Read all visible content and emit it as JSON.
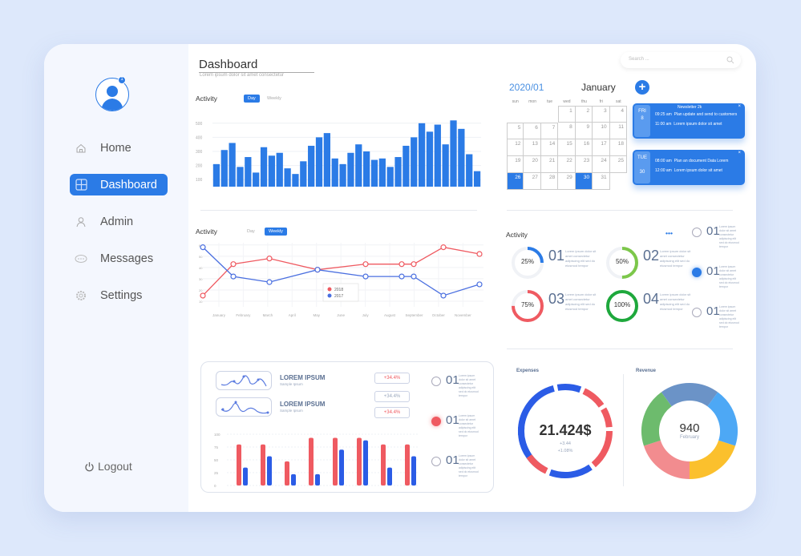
{
  "sidebar": {
    "avatar_badge": "1",
    "items": [
      {
        "label": "Home",
        "icon": "home-icon",
        "active": false
      },
      {
        "label": "Dashboard",
        "icon": "grid-icon",
        "active": true
      },
      {
        "label": "Admin",
        "icon": "user-icon",
        "active": false
      },
      {
        "label": "Messages",
        "icon": "chat-icon",
        "active": false
      },
      {
        "label": "Settings",
        "icon": "gear-icon",
        "active": false
      }
    ],
    "logout_label": "Logout"
  },
  "header": {
    "title": "Dashboard",
    "subtitle": "Lorem ipsum dolor sit amet consectetur",
    "search_placeholder": "Search ..."
  },
  "activity_bar": {
    "label": "Activity",
    "tabs": [
      "Day",
      "Weekly"
    ],
    "active_tab": "Day"
  },
  "activity_line": {
    "label": "Activity",
    "tabs": [
      "Day",
      "Weekly"
    ],
    "active_tab": "Weekly",
    "legend": [
      "2018",
      "2017"
    ]
  },
  "calendar": {
    "year_month": "2020/01",
    "month": "January",
    "weekdays": [
      "sun",
      "mon",
      "tue",
      "wed",
      "thu",
      "fri",
      "sat"
    ],
    "days": [
      "",
      "",
      "",
      "1",
      "2",
      "3",
      "4",
      "5",
      "6",
      "7",
      "8",
      "9",
      "10",
      "11",
      "12",
      "13",
      "14",
      "15",
      "16",
      "17",
      "18",
      "19",
      "20",
      "21",
      "22",
      "23",
      "24",
      "25",
      "26",
      "27",
      "28",
      "29",
      "30",
      "31",
      ""
    ],
    "selected": [
      "26",
      "30"
    ],
    "add_label": "+"
  },
  "events": [
    {
      "date_top": "FRI",
      "date_bottom": "8",
      "title": "Newsletter 2k",
      "rows": [
        {
          "time": "09:25 am",
          "text": "Plan update and send to customers"
        },
        {
          "time": "11:00 am",
          "text": "Lorem ipsum dolor sit amet"
        }
      ]
    },
    {
      "date_top": "TUE",
      "date_bottom": "30",
      "title": "",
      "rows": [
        {
          "time": "08:00 am",
          "text": "Plan an document Data Lorem"
        },
        {
          "time": "12:00 am",
          "text": "Lorem ipsum dolor sit amet"
        }
      ]
    }
  ],
  "activity_rings": {
    "label": "Activity",
    "more_label": "•••",
    "items": [
      {
        "pct": "25%",
        "num": "01",
        "color": "#2b7be6",
        "value": 25
      },
      {
        "pct": "50%",
        "num": "02",
        "color": "#7cc74a",
        "value": 50
      },
      {
        "pct": "75%",
        "num": "03",
        "color": "#ef5a61",
        "value": 75
      },
      {
        "pct": "100%",
        "num": "04",
        "color": "#1ea83c",
        "value": 100
      }
    ],
    "text": "Lorem ipsum dolor sit amet consectetur adipiscing elit sed do eiusmod tempor"
  },
  "radio_list_right": [
    {
      "num": "01",
      "state": "off"
    },
    {
      "num": "01",
      "state": "blue"
    },
    {
      "num": "01",
      "state": "off"
    }
  ],
  "radio_list_bottom": [
    {
      "num": "01",
      "state": "off"
    },
    {
      "num": "01",
      "state": "red"
    },
    {
      "num": "01",
      "state": "off"
    }
  ],
  "lorem_cards": [
    {
      "title": "LOREM IPSUM",
      "sub": "Sample Ipsum"
    },
    {
      "title": "LOREM IPSUM",
      "sub": "Sample Ipsum"
    }
  ],
  "percent_badges": [
    {
      "text": "+34.4%",
      "color": "#ef5a61"
    },
    {
      "text": "+34.4%",
      "color": "#9aa7bd"
    },
    {
      "text": "+34.4%",
      "color": "#ef5a61"
    }
  ],
  "expenses": {
    "label": "Expenses",
    "value": "21.424$",
    "sub1": "+3.44",
    "sub2": "+1.08%"
  },
  "revenue": {
    "label": "Revenue",
    "value": "940",
    "sub": "February"
  },
  "colors": {
    "accent": "#2b7be6",
    "red": "#ef5a61",
    "blue_line": "#4a6fe0"
  },
  "chart_data": [
    {
      "type": "bar",
      "title": "Activity",
      "y_ticks": [
        "100",
        "200",
        "300",
        "400",
        "500"
      ],
      "ylim": [
        50,
        550
      ],
      "values": [
        210,
        310,
        360,
        190,
        260,
        150,
        330,
        270,
        290,
        180,
        140,
        230,
        340,
        400,
        430,
        250,
        210,
        290,
        350,
        300,
        240,
        250,
        190,
        260,
        340,
        400,
        500,
        440,
        490,
        350,
        520,
        460,
        280,
        160
      ]
    },
    {
      "type": "line",
      "title": "Activity",
      "categories": [
        "January",
        "February",
        "March",
        "April",
        "May",
        "June",
        "July",
        "August",
        "September",
        "October",
        "November"
      ],
      "y_ticks": [
        "10",
        "20",
        "30",
        "40",
        "50",
        "60"
      ],
      "series": [
        {
          "name": "2018",
          "color": "#ef5a61",
          "x": [
            0,
            1,
            2,
            4,
            5,
            6.5,
            7,
            8.2,
            9.2
          ],
          "values": [
            15,
            43,
            48,
            38,
            43,
            43,
            43,
            58,
            52
          ]
        },
        {
          "name": "2017",
          "color": "#4a6fe0",
          "x": [
            0,
            1,
            2,
            4,
            5,
            6.5,
            7,
            8.2,
            9.2
          ],
          "values": [
            58,
            32,
            27,
            38,
            32,
            32,
            32,
            15,
            25
          ]
        }
      ]
    },
    {
      "type": "bar",
      "title": "",
      "y_ticks": [
        "0",
        "25",
        "50",
        "75",
        "100"
      ],
      "ylim": [
        0,
        100
      ],
      "series": [
        {
          "name": "red",
          "color": "#ef5a61",
          "values": [
            80,
            80,
            47,
            93,
            93,
            93,
            80,
            80
          ]
        },
        {
          "name": "blue",
          "color": "#2b5ce6",
          "values": [
            35,
            57,
            22,
            22,
            70,
            88,
            35,
            57
          ]
        }
      ]
    },
    {
      "type": "pie",
      "title": "Revenue",
      "slices": [
        {
          "label": "slate",
          "value": 20,
          "color": "#6b93c7"
        },
        {
          "label": "light-blue",
          "value": 20,
          "color": "#4da8f5"
        },
        {
          "label": "yellow",
          "value": 20,
          "color": "#fbc02d"
        },
        {
          "label": "pink",
          "value": 20,
          "color": "#f28c8f"
        },
        {
          "label": "green",
          "value": 20,
          "color": "#6dbb6d"
        }
      ]
    }
  ]
}
